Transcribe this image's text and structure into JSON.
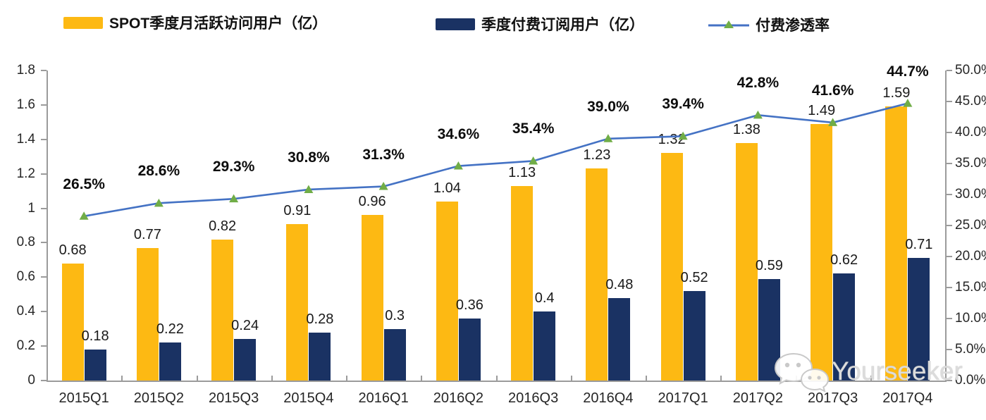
{
  "chart_data": {
    "type": "bar",
    "subtype": "combo-bar-line",
    "title": "",
    "categories": [
      "2015Q1",
      "2015Q2",
      "2015Q3",
      "2015Q4",
      "2016Q1",
      "2016Q2",
      "2016Q3",
      "2016Q4",
      "2017Q1",
      "2017Q2",
      "2017Q3",
      "2017Q4"
    ],
    "series": [
      {
        "name": "SPOT季度月活跃访问用户（亿）",
        "type": "bar",
        "axis": "left",
        "color": "#FDB913",
        "values": [
          0.68,
          0.77,
          0.82,
          0.91,
          0.96,
          1.04,
          1.13,
          1.23,
          1.32,
          1.38,
          1.49,
          1.59
        ],
        "labels": [
          "0.68",
          "0.77",
          "0.82",
          "0.91",
          "0.96",
          "1.04",
          "1.13",
          "1.23",
          "1.32",
          "1.38",
          "1.49",
          "1.59"
        ]
      },
      {
        "name": "季度付费订阅用户（亿）",
        "type": "bar",
        "axis": "left",
        "color": "#1A3263",
        "values": [
          0.18,
          0.22,
          0.24,
          0.28,
          0.3,
          0.36,
          0.4,
          0.48,
          0.52,
          0.59,
          0.62,
          0.71
        ],
        "labels": [
          "0.18",
          "0.22",
          "0.24",
          "0.28",
          "0.3",
          "0.36",
          "0.4",
          "0.48",
          "0.52",
          "0.59",
          "0.62",
          "0.71"
        ]
      },
      {
        "name": "付费渗透率",
        "type": "line",
        "axis": "right",
        "color": "#4472C4",
        "marker": "triangle",
        "marker_color": "#70AD47",
        "values": [
          26.5,
          28.6,
          29.3,
          30.8,
          31.3,
          34.6,
          35.4,
          39.0,
          39.4,
          42.8,
          41.6,
          44.7
        ],
        "labels": [
          "26.5%",
          "28.6%",
          "29.3%",
          "30.8%",
          "31.3%",
          "34.6%",
          "35.4%",
          "39.0%",
          "39.4%",
          "42.8%",
          "41.6%",
          "44.7%"
        ]
      }
    ],
    "left_axis": {
      "min": 0,
      "max": 1.8,
      "step": 0.2,
      "ticks": [
        "0",
        "0.2",
        "0.4",
        "0.6",
        "0.8",
        "1",
        "1.2",
        "1.4",
        "1.6",
        "1.8"
      ]
    },
    "right_axis": {
      "min": 0,
      "max": 50,
      "step": 5,
      "ticks": [
        "0.0%",
        "5.0%",
        "10.0%",
        "15.0%",
        "20.0%",
        "25.0%",
        "30.0%",
        "35.0%",
        "40.0%",
        "45.0%",
        "50.0%"
      ]
    },
    "grid": false,
    "legend_position": "top"
  },
  "watermark": {
    "text": "Yourseeker",
    "icon": "wechat-icon"
  }
}
